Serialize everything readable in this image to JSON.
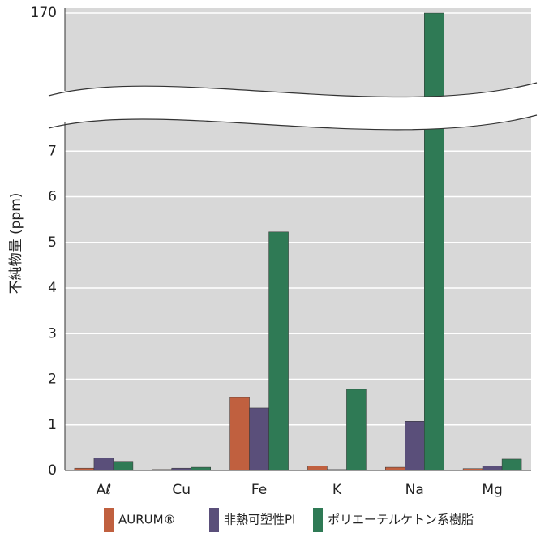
{
  "chart_data": {
    "type": "bar",
    "y_label": "不純物量 (ppm)",
    "categories": [
      "Aℓ",
      "Cu",
      "Fe",
      "K",
      "Na",
      "Mg"
    ],
    "series": [
      {
        "name": "AURUM®",
        "color": "#c0603f",
        "values": [
          0.05,
          0.02,
          1.6,
          0.1,
          0.07,
          0.04
        ]
      },
      {
        "name": "非熱可塑性PI",
        "color": "#5a4f7a",
        "values": [
          0.28,
          0.05,
          1.37,
          0.02,
          1.08,
          0.1
        ]
      },
      {
        "name": "ポリエーテルケトン系樹脂",
        "color": "#2f7a55",
        "values": [
          0.2,
          0.07,
          5.23,
          1.78,
          170,
          0.25
        ]
      }
    ],
    "ylim": [
      0,
      170
    ],
    "yticks": [
      0,
      1,
      2,
      3,
      4,
      5,
      6,
      7,
      170
    ],
    "ybreak": [
      8,
      168
    ],
    "grid": true
  }
}
